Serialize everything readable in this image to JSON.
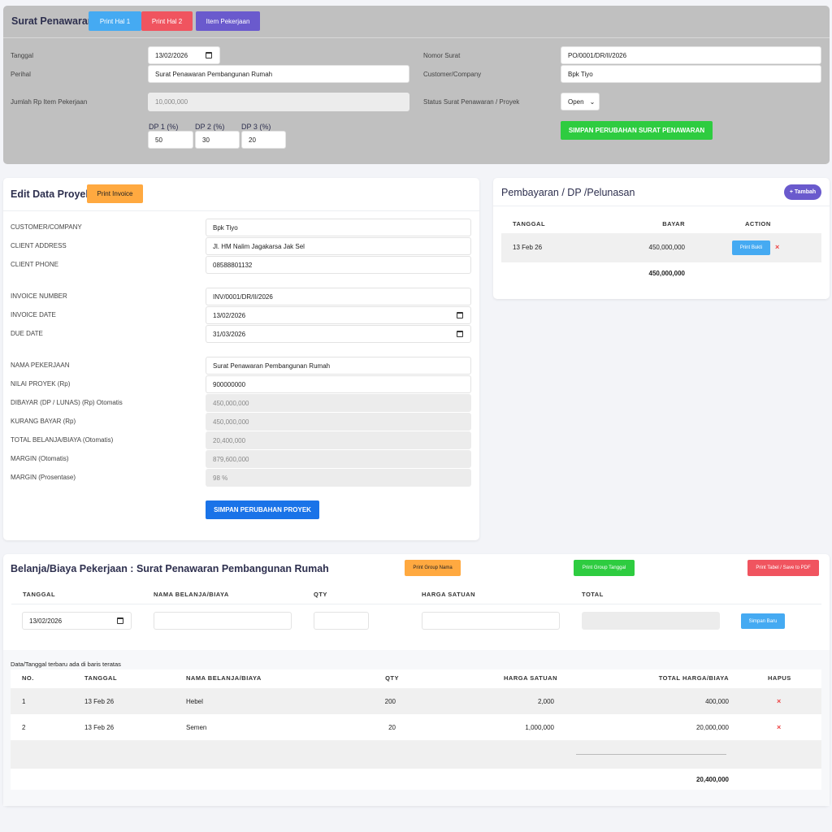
{
  "offer": {
    "title": "Surat Penawaran",
    "btn_hal1": "Print Hal 1",
    "btn_hal2": "Print Hal 2",
    "btn_item": "Item Pekerjaan",
    "tanggal_label": "Tanggal",
    "tanggal": "13/02/2026",
    "perihal_label": "Perihal",
    "perihal": "Surat Penawaran Pembangunan Rumah",
    "jumlah_label": "Jumlah Rp Item Pekerjaan",
    "jumlah": "10,000,000",
    "dp1_label": "DP 1 (%)",
    "dp1": "50",
    "dp2_label": "DP 2 (%)",
    "dp2": "30",
    "dp3_label": "DP 3 (%)",
    "dp3": "20",
    "nomor_label": "Nomor Surat",
    "nomor": "PO/0001/DR/II/2026",
    "customer_label": "Customer/Company",
    "customer": "Bpk Tiyo",
    "status_label": "Status Surat Penawaran / Proyek",
    "status": "Open",
    "save": "SIMPAN PERUBAHAN SURAT PENAWARAN"
  },
  "project": {
    "title": "Edit Data Proyek",
    "print_invoice": "Print Invoice",
    "save": "SIMPAN PERUBAHAN PROYEK",
    "fields": [
      {
        "label": "CUSTOMER/COMPANY",
        "value": "Bpk Tiyo"
      },
      {
        "label": "CLIENT ADDRESS",
        "value": "Jl. HM Nalim Jagakarsa Jak Sel"
      },
      {
        "label": "CLIENT PHONE",
        "value": "08588801132"
      },
      {
        "label": "INVOICE NUMBER",
        "value": "INV/0001/DR/II/2026"
      },
      {
        "label": "INVOICE DATE",
        "value": "13/02/2026"
      },
      {
        "label": "DUE DATE",
        "value": "31/03/2026"
      },
      {
        "label": "NAMA PEKERJAAN",
        "value": "Surat Penawaran Pembangunan Rumah"
      },
      {
        "label": "NILAI PROYEK (Rp)",
        "value": "900000000"
      },
      {
        "label": "DIBAYAR (DP / LUNAS) (Rp) Otomatis",
        "value": "450,000,000"
      },
      {
        "label": "KURANG BAYAR (Rp)",
        "value": "450,000,000"
      },
      {
        "label": "TOTAL BELANJA/BIAYA (Otomatis)",
        "value": "20,400,000"
      },
      {
        "label": "MARGIN (Otomatis)",
        "value": "879,600,000"
      },
      {
        "label": "MARGIN (Prosentase)",
        "value": "98 %"
      }
    ]
  },
  "payment": {
    "title": "Pembayaran / DP /Pelunasan",
    "add": "+ Tambah",
    "col_tanggal": "TANGGAL",
    "col_bayar": "BAYAR",
    "col_action": "ACTION",
    "rows": [
      {
        "tanggal": "13 Feb 26",
        "bayar": "450,000,000",
        "print": "Print Bukti"
      }
    ],
    "total": "450,000,000"
  },
  "expense": {
    "title": "Belanja/Biaya Pekerjaan : Surat Penawaran Pembangunan Rumah",
    "print_nama": "Print Group Nama",
    "print_tanggal": "Print Group Tanggal",
    "print_tabel": "Print Tabel / Save to PDF",
    "form_cols": [
      "TANGGAL",
      "NAMA BELANJA/BIAYA",
      "QTY",
      "HARGA SATUAN",
      "TOTAL"
    ],
    "form_date": "13/02/2026",
    "save_new": "Simpan Baru",
    "note": "Data/Tanggal terbaru ada di baris teratas",
    "cols": [
      "NO.",
      "TANGGAL",
      "NAMA BELANJA/BIAYA",
      "QTY",
      "HARGA SATUAN",
      "TOTAL HARGA/BIAYA",
      "HAPUS"
    ],
    "rows": [
      {
        "no": "1",
        "tanggal": "13 Feb 26",
        "nama": "Hebel",
        "qty": "200",
        "harga": "2,000",
        "total": "400,000"
      },
      {
        "no": "2",
        "tanggal": "13 Feb 26",
        "nama": "Semen",
        "qty": "20",
        "harga": "1,000,000",
        "total": "20,000,000"
      }
    ],
    "grand_total": "20,400,000"
  }
}
